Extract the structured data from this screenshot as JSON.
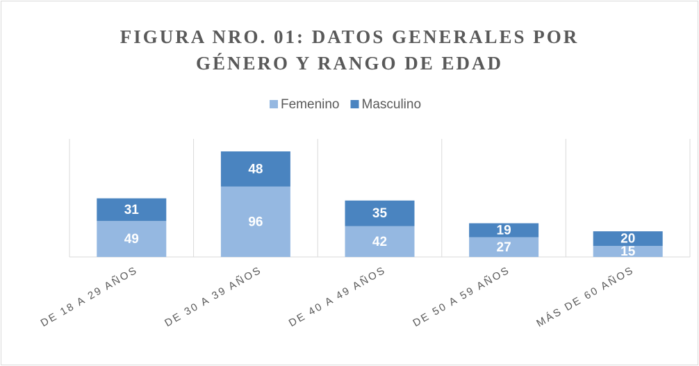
{
  "chart_data": {
    "type": "stacked_bar",
    "title": "FIGURA NRO. 01: DATOS GENERALES POR GÉNERO Y RANGO DE EDAD",
    "categories": [
      "DE 18 A 29 AÑOS",
      "DE 30 A 39 AÑOS",
      "DE 40 A 49 AÑOS",
      "DE 50 A 59 AÑOS",
      "MÁS DE 60 AÑOS"
    ],
    "series": [
      {
        "name": "Femenino",
        "color": "#95b8e1",
        "values": [
          49,
          96,
          42,
          27,
          15
        ]
      },
      {
        "name": "Masculino",
        "color": "#4a84c0",
        "values": [
          31,
          48,
          35,
          19,
          20
        ]
      }
    ],
    "legend": "top"
  }
}
